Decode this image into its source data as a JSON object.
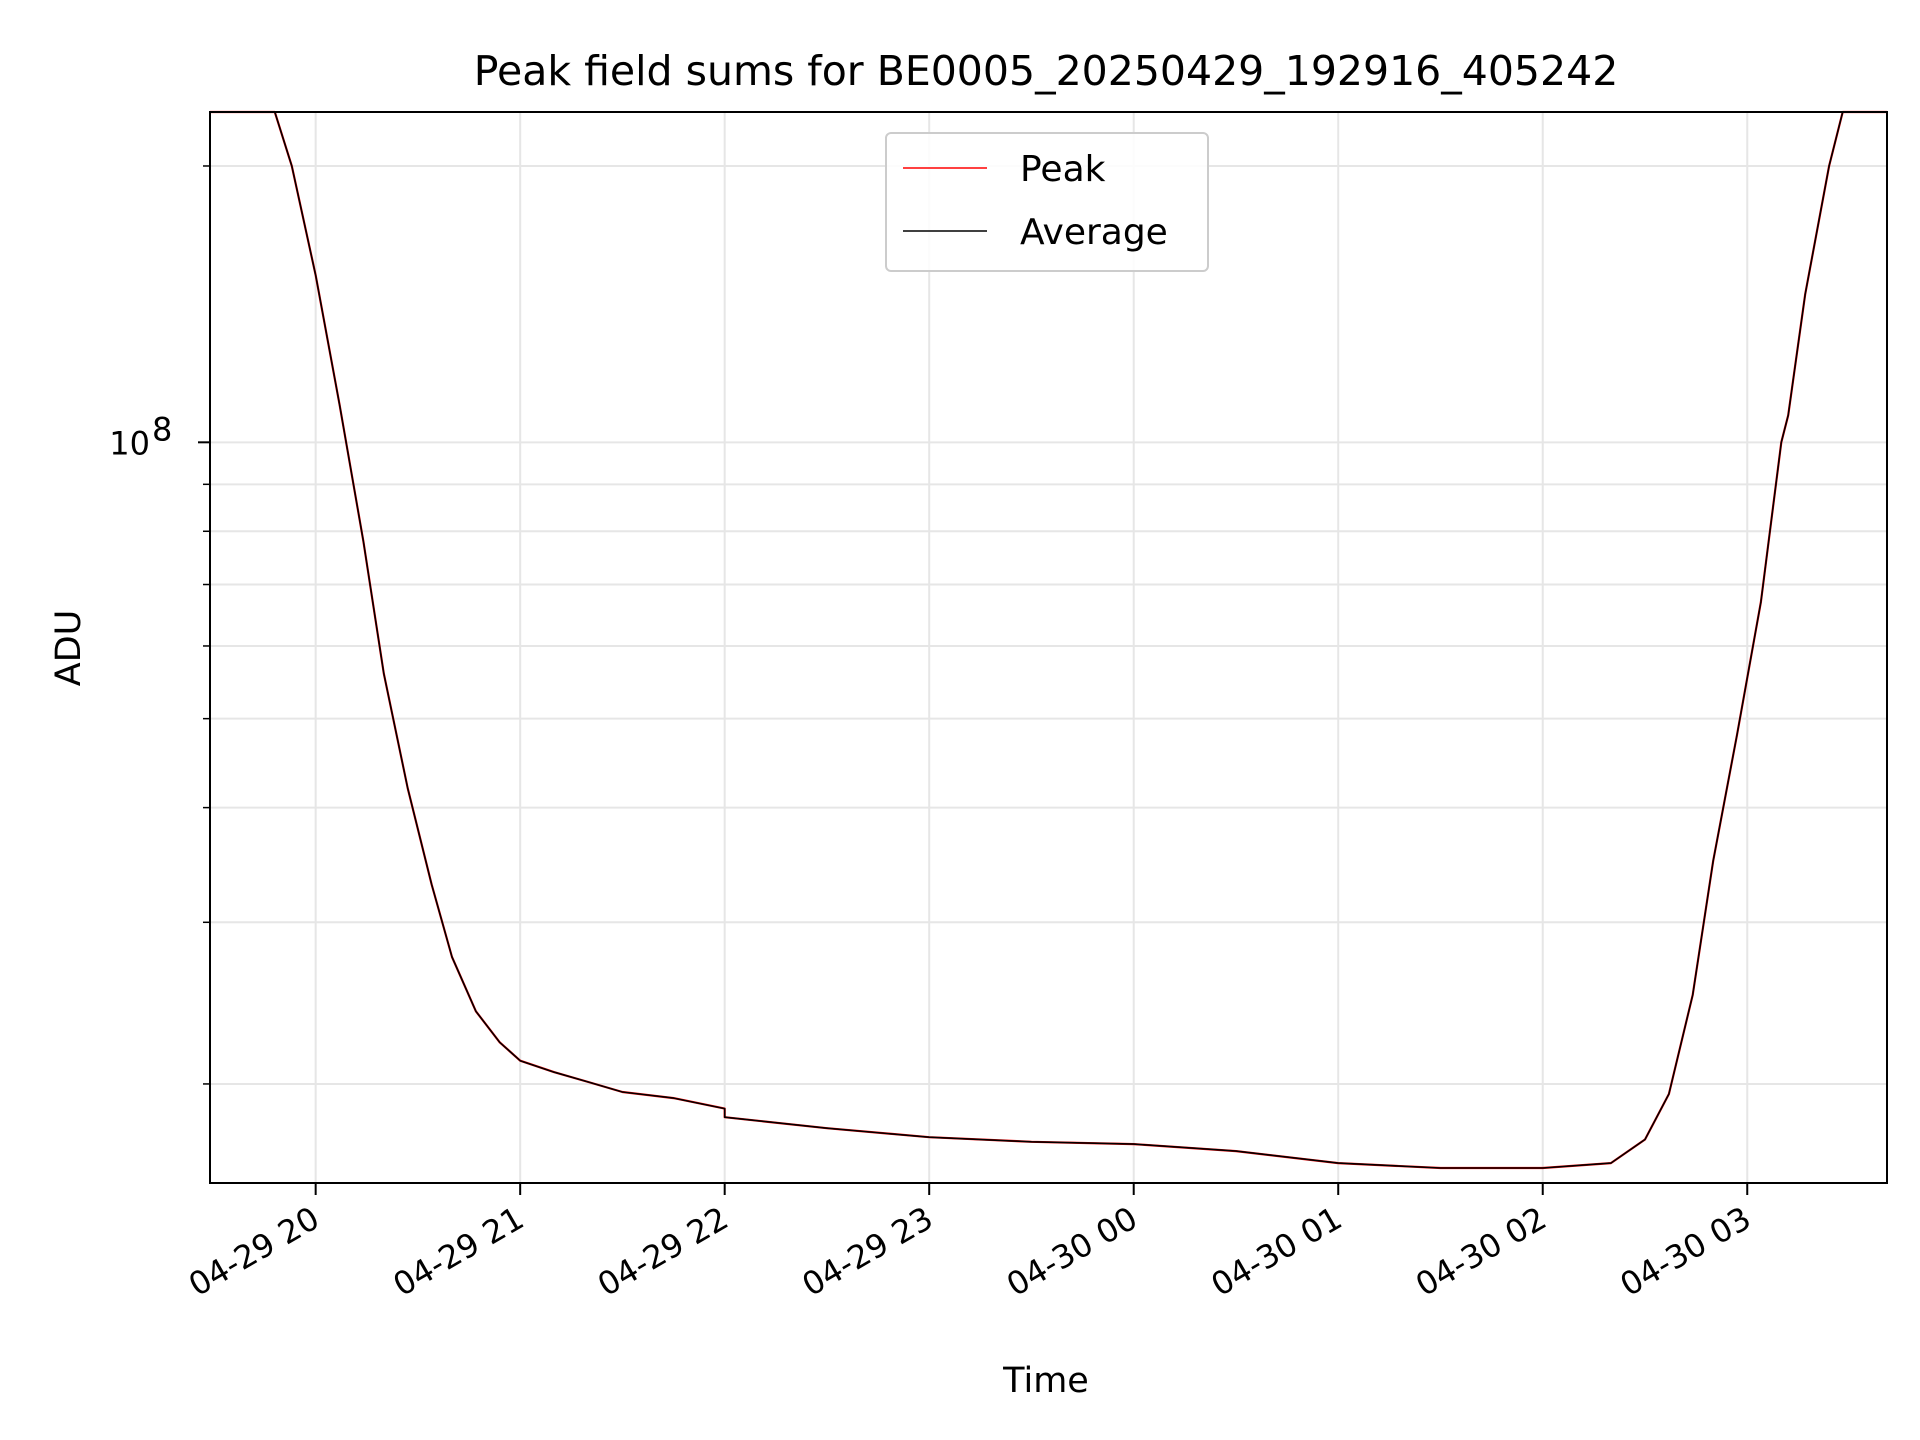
{
  "chart_data": {
    "type": "line",
    "title": "Peak field sums for BE0005_20250429_192916_405242",
    "xlabel": "Time",
    "ylabel": "ADU",
    "y_scale": "log",
    "x_range": [
      "2025-04-29 19:29",
      "2025-04-30 03:41"
    ],
    "y_range": [
      15600000,
      229000000
    ],
    "x_tick_values": [
      "2025-04-29 20:00",
      "2025-04-29 21:00",
      "2025-04-29 22:00",
      "2025-04-29 23:00",
      "2025-04-30 00:00",
      "2025-04-30 01:00",
      "2025-04-30 02:00",
      "2025-04-30 03:00"
    ],
    "x_tick_labels": [
      "04-29 20",
      "04-29 21",
      "04-29 22",
      "04-29 23",
      "04-30 00",
      "04-30 01",
      "04-30 02",
      "04-30 03"
    ],
    "y_major_tick_values": [
      100000000
    ],
    "y_major_tick_labels": [
      "10",
      "8"
    ],
    "y_minor_tick_values": [
      20000000,
      30000000,
      40000000,
      50000000,
      60000000,
      70000000,
      80000000,
      90000000,
      200000000
    ],
    "grid": true,
    "legend_position": "upper center",
    "series": [
      {
        "name": "Peak",
        "color": "#ff0000",
        "points": [
          [
            "2025-04-29 19:29",
            229000000
          ],
          [
            "2025-04-29 19:48",
            229000000
          ],
          [
            "2025-04-29 19:53",
            200000000
          ],
          [
            "2025-04-29 20:00",
            152000000
          ],
          [
            "2025-04-29 20:07",
            110000000
          ],
          [
            "2025-04-29 20:14",
            78000000
          ],
          [
            "2025-04-29 20:20",
            56000000
          ],
          [
            "2025-04-29 20:27",
            42000000
          ],
          [
            "2025-04-29 20:34",
            33000000
          ],
          [
            "2025-04-29 20:40",
            27500000
          ],
          [
            "2025-04-29 20:47",
            24000000
          ],
          [
            "2025-04-29 20:54",
            22200000
          ],
          [
            "2025-04-29 21:00",
            21200000
          ],
          [
            "2025-04-29 21:10",
            20600000
          ],
          [
            "2025-04-29 21:20",
            20100000
          ],
          [
            "2025-04-29 21:30",
            19600000
          ],
          [
            "2025-04-29 21:45",
            19300000
          ],
          [
            "2025-04-29 22:00",
            18800000
          ],
          [
            "2025-04-29 22:00",
            18400000
          ],
          [
            "2025-04-29 22:30",
            17900000
          ],
          [
            "2025-04-29 23:00",
            17500000
          ],
          [
            "2025-04-29 23:30",
            17300000
          ],
          [
            "2025-04-30 00:00",
            17200000
          ],
          [
            "2025-04-30 00:30",
            16900000
          ],
          [
            "2025-04-30 01:00",
            16400000
          ],
          [
            "2025-04-30 01:30",
            16200000
          ],
          [
            "2025-04-30 02:00",
            16200000
          ],
          [
            "2025-04-30 02:20",
            16400000
          ],
          [
            "2025-04-30 02:30",
            17400000
          ],
          [
            "2025-04-30 02:37",
            19500000
          ],
          [
            "2025-04-30 02:44",
            25000000
          ],
          [
            "2025-04-30 02:50",
            35000000
          ],
          [
            "2025-04-30 02:57",
            48000000
          ],
          [
            "2025-04-30 03:04",
            67000000
          ],
          [
            "2025-04-30 03:10",
            100000000
          ],
          [
            "2025-04-30 03:12",
            107000000
          ],
          [
            "2025-04-30 03:17",
            145000000
          ],
          [
            "2025-04-30 03:24",
            200000000
          ],
          [
            "2025-04-30 03:28",
            229000000
          ],
          [
            "2025-04-30 03:41",
            229000000
          ]
        ]
      },
      {
        "name": "Average",
        "color": "#000000",
        "points": [
          [
            "2025-04-29 19:29",
            229000000
          ],
          [
            "2025-04-29 19:48",
            229000000
          ],
          [
            "2025-04-29 19:53",
            200000000
          ],
          [
            "2025-04-29 20:00",
            152000000
          ],
          [
            "2025-04-29 20:07",
            110000000
          ],
          [
            "2025-04-29 20:14",
            78000000
          ],
          [
            "2025-04-29 20:20",
            56000000
          ],
          [
            "2025-04-29 20:27",
            42000000
          ],
          [
            "2025-04-29 20:34",
            33000000
          ],
          [
            "2025-04-29 20:40",
            27500000
          ],
          [
            "2025-04-29 20:47",
            24000000
          ],
          [
            "2025-04-29 20:54",
            22200000
          ],
          [
            "2025-04-29 21:00",
            21200000
          ],
          [
            "2025-04-29 21:10",
            20600000
          ],
          [
            "2025-04-29 21:20",
            20100000
          ],
          [
            "2025-04-29 21:30",
            19600000
          ],
          [
            "2025-04-29 21:45",
            19300000
          ],
          [
            "2025-04-29 22:00",
            18800000
          ],
          [
            "2025-04-29 22:00",
            18400000
          ],
          [
            "2025-04-29 22:30",
            17900000
          ],
          [
            "2025-04-29 23:00",
            17500000
          ],
          [
            "2025-04-29 23:30",
            17300000
          ],
          [
            "2025-04-30 00:00",
            17200000
          ],
          [
            "2025-04-30 00:30",
            16900000
          ],
          [
            "2025-04-30 01:00",
            16400000
          ],
          [
            "2025-04-30 01:30",
            16200000
          ],
          [
            "2025-04-30 02:00",
            16200000
          ],
          [
            "2025-04-30 02:20",
            16400000
          ],
          [
            "2025-04-30 02:30",
            17400000
          ],
          [
            "2025-04-30 02:37",
            19500000
          ],
          [
            "2025-04-30 02:44",
            25000000
          ],
          [
            "2025-04-30 02:50",
            35000000
          ],
          [
            "2025-04-30 02:57",
            48000000
          ],
          [
            "2025-04-30 03:04",
            67000000
          ],
          [
            "2025-04-30 03:10",
            100000000
          ],
          [
            "2025-04-30 03:12",
            107000000
          ],
          [
            "2025-04-30 03:17",
            145000000
          ],
          [
            "2025-04-30 03:24",
            200000000
          ],
          [
            "2025-04-30 03:28",
            229000000
          ],
          [
            "2025-04-30 03:41",
            229000000
          ]
        ]
      }
    ]
  }
}
